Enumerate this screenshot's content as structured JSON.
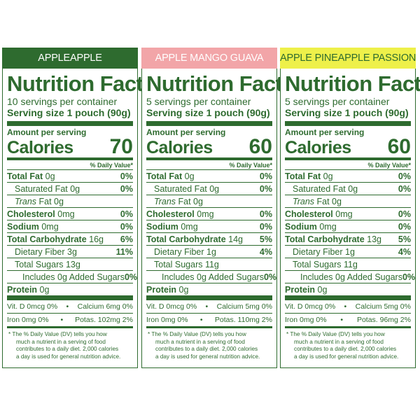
{
  "panels": [
    {
      "header": "APPLEAPPLE",
      "header_bg": "#2e6b2f",
      "header_color": "#ffffff",
      "accent": "#2e6b2f",
      "title": "Nutrition Facts",
      "servings": "10 servings per container",
      "serving_size": "Serving size 1 pouch (90g)",
      "amount_per_serving": "Amount per serving",
      "calories_label": "Calories",
      "calories": "70",
      "dv_header": "% Daily Value*",
      "total_fat": {
        "label": "Total Fat",
        "amount": "0g",
        "dv": "0%"
      },
      "sat_fat": {
        "label": "Saturated Fat 0g",
        "dv": "0%"
      },
      "trans_fat": {
        "label": "Trans",
        "rest": "Fat 0g"
      },
      "cholesterol": {
        "label": "Cholesterol",
        "amount": "0mg",
        "dv": "0%"
      },
      "sodium": {
        "label": "Sodium",
        "amount": "0mg",
        "dv": "0%"
      },
      "carb": {
        "label": "Total Carbohydrate",
        "amount": "16g",
        "dv": "6%"
      },
      "fiber": {
        "label": "Dietary Fiber 3g",
        "dv": "11%"
      },
      "sugars": {
        "label": "Total Sugars 13g"
      },
      "added_sugars": {
        "label": "Includes 0g Added Sugars",
        "dv": "0%"
      },
      "protein": {
        "label": "Protein",
        "amount": "0g"
      },
      "vit_d": "Vit. D 0mcg 0%",
      "calcium": "Calcium 6mg 0%",
      "iron": "Iron 0mg 0%",
      "potas": "Potas. 102mg 2%",
      "bullet": "•",
      "foot1": "* The % Daily Value (DV) tells you how",
      "foot2": "much a nutrient in a serving of food",
      "foot3": "contributes to a daily diet. 2,000 calories",
      "foot4": "a day is used for general nutrition advice."
    },
    {
      "header": "APPLE MANGO GUAVA",
      "header_bg": "#f2a5a8",
      "header_color": "#ffffff",
      "accent": "#2e6b2f",
      "title": "Nutrition Facts",
      "servings": "5 servings per container",
      "serving_size": "Serving size 1 pouch (90g)",
      "amount_per_serving": "Amount per serving",
      "calories_label": "Calories",
      "calories": "60",
      "dv_header": "% Daily Value*",
      "total_fat": {
        "label": "Total Fat",
        "amount": "0g",
        "dv": "0%"
      },
      "sat_fat": {
        "label": "Saturated Fat 0g",
        "dv": "0%"
      },
      "trans_fat": {
        "label": "Trans",
        "rest": "Fat 0g"
      },
      "cholesterol": {
        "label": "Cholesterol",
        "amount": "0mg",
        "dv": "0%"
      },
      "sodium": {
        "label": "Sodium",
        "amount": "0mg",
        "dv": "0%"
      },
      "carb": {
        "label": "Total Carbohydrate",
        "amount": "14g",
        "dv": "5%"
      },
      "fiber": {
        "label": "Dietary Fiber 1g",
        "dv": "4%"
      },
      "sugars": {
        "label": "Total Sugars 11g"
      },
      "added_sugars": {
        "label": "Includes 0g Added Sugars",
        "dv": "0%"
      },
      "protein": {
        "label": "Protein",
        "amount": "0g"
      },
      "vit_d": "Vit. D 0mcg 0%",
      "calcium": "Calcium 5mg 0%",
      "iron": "Iron 0mg 0%",
      "potas": "Potas. 110mg 2%",
      "bullet": "•",
      "foot1": "* The % Daily Value (DV) tells you how",
      "foot2": "much a nutrient in a serving of food",
      "foot3": "contributes to a daily diet. 2,000 calories",
      "foot4": "a day is used for general nutrition advice."
    },
    {
      "header": "APPLE PINEAPPLE PASSION FRUIT",
      "header_bg": "#eef04a",
      "header_color": "#2e6b2f",
      "accent": "#2e6b2f",
      "title": "Nutrition Facts",
      "servings": "5 servings per container",
      "serving_size": "Serving size 1 pouch (90g)",
      "amount_per_serving": "Amount per serving",
      "calories_label": "Calories",
      "calories": "60",
      "dv_header": "% Daily Value*",
      "total_fat": {
        "label": "Total Fat",
        "amount": "0g",
        "dv": "0%"
      },
      "sat_fat": {
        "label": "Saturated Fat 0g",
        "dv": "0%"
      },
      "trans_fat": {
        "label": "Trans",
        "rest": "Fat 0g"
      },
      "cholesterol": {
        "label": "Cholesterol",
        "amount": "0mg",
        "dv": "0%"
      },
      "sodium": {
        "label": "Sodium",
        "amount": "0mg",
        "dv": "0%"
      },
      "carb": {
        "label": "Total Carbohydrate",
        "amount": "13g",
        "dv": "5%"
      },
      "fiber": {
        "label": "Dietary Fiber 1g",
        "dv": "4%"
      },
      "sugars": {
        "label": "Total Sugars 11g"
      },
      "added_sugars": {
        "label": "Includes 0g Added Sugars",
        "dv": "0%"
      },
      "protein": {
        "label": "Protein",
        "amount": "0g"
      },
      "vit_d": "Vit. D 0mcg 0%",
      "calcium": "Calcium 5mg 0%",
      "iron": "Iron 0mg 0%",
      "potas": "Potas. 96mg 2%",
      "bullet": "•",
      "foot1": "* The % Daily Value (DV) tells you how",
      "foot2": "much a nutrient in a serving of food",
      "foot3": "contributes to a daily diet. 2,000 calories",
      "foot4": "a day is used for general nutrition advice."
    }
  ]
}
